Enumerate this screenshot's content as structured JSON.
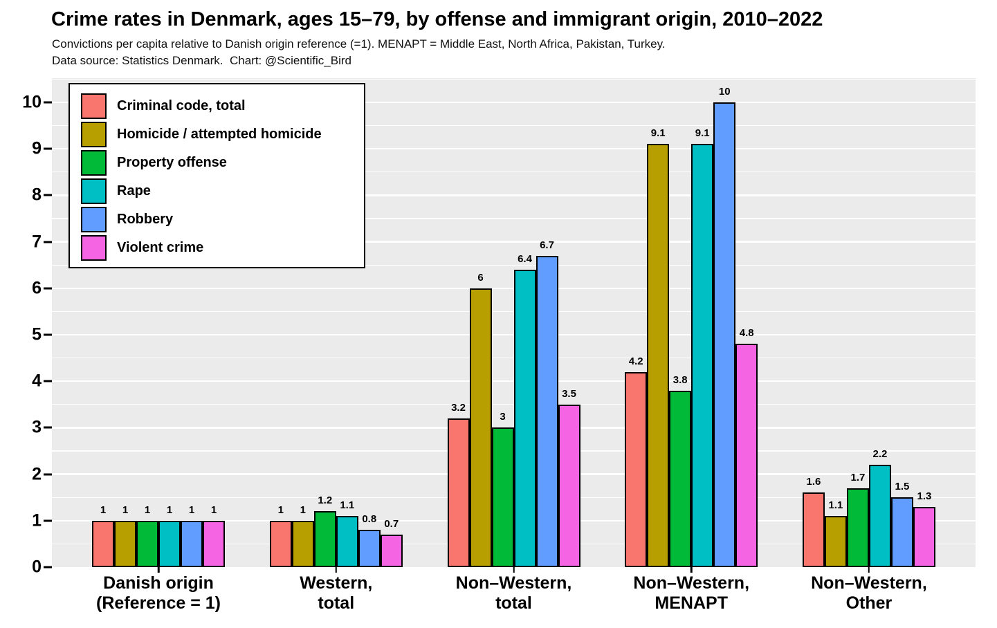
{
  "header": {
    "title": "Crime rates in Denmark, ages 15–79, by offense and immigrant origin, 2010–2022",
    "subtitle_line1": "Convictions per capita relative to Danish origin reference (=1). MENAPT = Middle East, North Africa, Pakistan, Turkey.",
    "subtitle_line2": "Data source: Statistics Denmark.  Chart: @Scientific_Bird"
  },
  "chart_data": {
    "type": "bar",
    "title": "Crime rates in Denmark, ages 15–79, by offense and immigrant origin, 2010–2022",
    "subtitle": "Convictions per capita relative to Danish origin reference (=1). MENAPT = Middle East, North Africa, Pakistan, Turkey. Data source: Statistics Denmark. Chart: @Scientific_Bird",
    "categories": [
      "Danish origin\n(Reference = 1)",
      "Western,\ntotal",
      "Non–Western,\ntotal",
      "Non–Western,\nMENAPT",
      "Non–Western,\nOther"
    ],
    "series": [
      {
        "name": "Criminal code, total",
        "color": "#F8766D",
        "values": [
          1,
          1,
          3.2,
          4.2,
          1.6
        ]
      },
      {
        "name": "Homicide / attempted homicide",
        "color": "#B79F00",
        "values": [
          1,
          1,
          6,
          9.1,
          1.1
        ]
      },
      {
        "name": "Property offense",
        "color": "#00BA38",
        "values": [
          1,
          1.2,
          3,
          3.8,
          1.7
        ]
      },
      {
        "name": "Rape",
        "color": "#00BFC4",
        "values": [
          1,
          1.1,
          6.4,
          9.1,
          2.2
        ]
      },
      {
        "name": "Robbery",
        "color": "#619CFF",
        "values": [
          1,
          0.8,
          6.7,
          10,
          1.5
        ]
      },
      {
        "name": "Violent crime",
        "color": "#F564E3",
        "values": [
          1,
          0.7,
          3.5,
          4.8,
          1.3
        ]
      }
    ],
    "xlabel": "",
    "ylabel": "",
    "ylim": [
      0,
      10
    ],
    "y_ticks": [
      "0",
      "1",
      "2",
      "3",
      "4",
      "5",
      "6",
      "7",
      "8",
      "9",
      "10"
    ],
    "grid": "horizontal major (1.0) and minor (0.5) white gridlines on gray panel",
    "legend_position": "top-left inside plot area",
    "panel_background": "#EBEBEB",
    "bar_outline_color": "#000000",
    "value_labels_shown": true
  }
}
